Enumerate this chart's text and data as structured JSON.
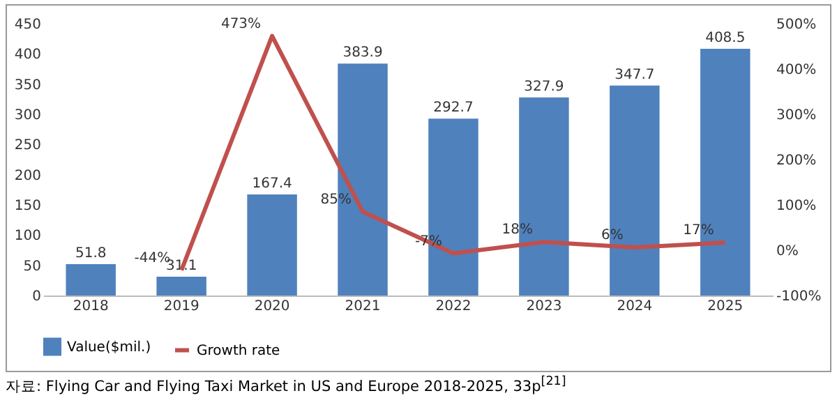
{
  "chart_data": {
    "type": "bar",
    "categories": [
      "2018",
      "2019",
      "2020",
      "2021",
      "2022",
      "2023",
      "2024",
      "2025"
    ],
    "series": [
      {
        "name": "Value($mil.)",
        "color": "#4f81bd",
        "values": [
          51.8,
          31.1,
          167.4,
          383.9,
          292.7,
          327.9,
          347.7,
          408.5
        ],
        "value_labels": [
          "51.8",
          "31.1",
          "167.4",
          "383.9",
          "292.7",
          "327.9",
          "347.7",
          "408.5"
        ]
      },
      {
        "name": "Growth rate",
        "type": "line",
        "axis": "y2",
        "color": "#c0504d",
        "values": [
          null,
          -44,
          473,
          85,
          -7,
          18,
          6,
          17
        ],
        "value_labels": [
          null,
          "-44%",
          "473%",
          "85%",
          "-7%",
          "18%",
          "6%",
          "17%"
        ]
      }
    ],
    "ylim": [
      0,
      450
    ],
    "yticks": [
      0,
      50,
      100,
      150,
      200,
      250,
      300,
      350,
      400,
      450
    ],
    "y2lim": [
      -100,
      500
    ],
    "y2ticks": [
      {
        "value": -100,
        "label": "-100%"
      },
      {
        "value": 0,
        "label": "0%"
      },
      {
        "value": 100,
        "label": "100%"
      },
      {
        "value": 200,
        "label": "200%"
      },
      {
        "value": 300,
        "label": "300%"
      },
      {
        "value": 400,
        "label": "400%"
      },
      {
        "value": 500,
        "label": "500%"
      }
    ],
    "legend": "bottom",
    "grid": false,
    "marker": "none",
    "line_style": "solid",
    "annotations": [
      "자료: Flying Car and Flying Taxi Market in US and Europe 2018-2025, 33p$^{[21]}$"
    ]
  }
}
